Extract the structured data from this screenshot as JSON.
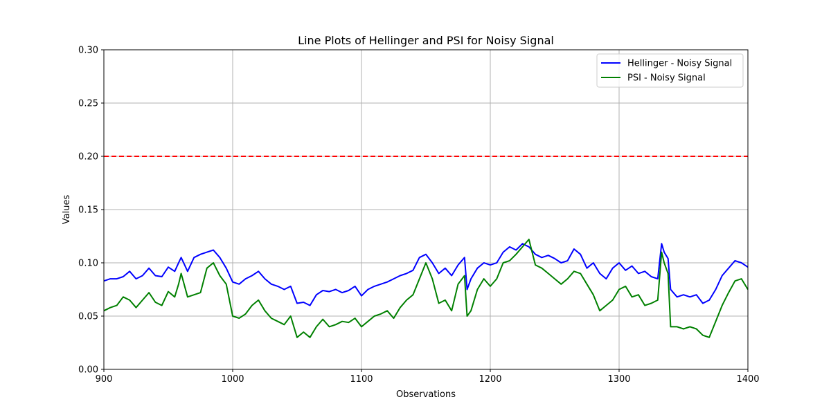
{
  "chart_data": {
    "type": "line",
    "title": "Line Plots of Hellinger and PSI for Noisy Signal",
    "xlabel": "Observations",
    "ylabel": "Values",
    "xlim": [
      900,
      1400
    ],
    "ylim": [
      0.0,
      0.3
    ],
    "x_ticks": [
      "900",
      "1000",
      "1100",
      "1200",
      "1300",
      "1400"
    ],
    "y_ticks": [
      "0.00",
      "0.05",
      "0.10",
      "0.15",
      "0.20",
      "0.25",
      "0.30"
    ],
    "grid": true,
    "legend_position": "top-right",
    "threshold": {
      "value": 0.2,
      "color": "#ff0000",
      "style": "dashed"
    },
    "series": [
      {
        "name": "Hellinger - Noisy Signal",
        "color": "#0000ff",
        "x": [
          900,
          905,
          910,
          915,
          920,
          925,
          930,
          935,
          940,
          945,
          950,
          955,
          958,
          960,
          965,
          970,
          975,
          980,
          985,
          990,
          995,
          1000,
          1005,
          1010,
          1015,
          1020,
          1025,
          1030,
          1035,
          1040,
          1045,
          1050,
          1055,
          1060,
          1065,
          1070,
          1075,
          1080,
          1085,
          1090,
          1095,
          1100,
          1105,
          1110,
          1115,
          1120,
          1125,
          1130,
          1135,
          1140,
          1145,
          1150,
          1155,
          1160,
          1165,
          1170,
          1175,
          1180,
          1182,
          1185,
          1190,
          1195,
          1200,
          1205,
          1210,
          1215,
          1220,
          1225,
          1230,
          1235,
          1240,
          1245,
          1250,
          1255,
          1260,
          1265,
          1270,
          1275,
          1280,
          1285,
          1290,
          1295,
          1300,
          1305,
          1310,
          1315,
          1320,
          1325,
          1330,
          1333,
          1335,
          1338,
          1340,
          1345,
          1350,
          1355,
          1360,
          1365,
          1370,
          1375,
          1380,
          1385,
          1390,
          1395,
          1400
        ],
        "y": [
          0.083,
          0.085,
          0.085,
          0.087,
          0.092,
          0.085,
          0.088,
          0.095,
          0.088,
          0.087,
          0.096,
          0.092,
          0.1,
          0.105,
          0.092,
          0.105,
          0.108,
          0.11,
          0.112,
          0.105,
          0.095,
          0.082,
          0.08,
          0.085,
          0.088,
          0.092,
          0.085,
          0.08,
          0.078,
          0.075,
          0.078,
          0.062,
          0.063,
          0.06,
          0.07,
          0.074,
          0.073,
          0.075,
          0.072,
          0.074,
          0.078,
          0.069,
          0.075,
          0.078,
          0.08,
          0.082,
          0.085,
          0.088,
          0.09,
          0.093,
          0.105,
          0.108,
          0.1,
          0.09,
          0.095,
          0.088,
          0.098,
          0.105,
          0.075,
          0.085,
          0.095,
          0.1,
          0.098,
          0.1,
          0.11,
          0.115,
          0.112,
          0.118,
          0.115,
          0.108,
          0.105,
          0.107,
          0.104,
          0.1,
          0.102,
          0.113,
          0.108,
          0.095,
          0.1,
          0.09,
          0.085,
          0.095,
          0.1,
          0.093,
          0.097,
          0.09,
          0.092,
          0.087,
          0.085,
          0.118,
          0.11,
          0.104,
          0.075,
          0.068,
          0.07,
          0.068,
          0.07,
          0.062,
          0.065,
          0.075,
          0.088,
          0.095,
          0.102,
          0.1,
          0.096
        ]
      },
      {
        "name": "PSI - Noisy Signal",
        "color": "#008000",
        "x": [
          900,
          905,
          910,
          915,
          920,
          925,
          930,
          935,
          940,
          945,
          950,
          955,
          958,
          960,
          965,
          970,
          975,
          980,
          985,
          990,
          995,
          1000,
          1005,
          1010,
          1015,
          1020,
          1025,
          1030,
          1035,
          1040,
          1045,
          1050,
          1055,
          1060,
          1065,
          1070,
          1075,
          1080,
          1085,
          1090,
          1095,
          1100,
          1105,
          1110,
          1115,
          1120,
          1125,
          1130,
          1135,
          1140,
          1145,
          1150,
          1155,
          1160,
          1165,
          1170,
          1175,
          1180,
          1182,
          1185,
          1190,
          1195,
          1200,
          1205,
          1210,
          1215,
          1220,
          1225,
          1230,
          1235,
          1240,
          1245,
          1250,
          1255,
          1260,
          1265,
          1270,
          1275,
          1280,
          1285,
          1290,
          1295,
          1300,
          1305,
          1310,
          1315,
          1320,
          1325,
          1330,
          1333,
          1335,
          1338,
          1340,
          1345,
          1350,
          1355,
          1360,
          1365,
          1370,
          1375,
          1380,
          1385,
          1390,
          1395,
          1400
        ],
        "y": [
          0.055,
          0.058,
          0.06,
          0.068,
          0.065,
          0.058,
          0.065,
          0.072,
          0.063,
          0.06,
          0.073,
          0.068,
          0.08,
          0.09,
          0.068,
          0.07,
          0.072,
          0.095,
          0.1,
          0.088,
          0.08,
          0.05,
          0.048,
          0.052,
          0.06,
          0.065,
          0.055,
          0.048,
          0.045,
          0.042,
          0.05,
          0.03,
          0.035,
          0.03,
          0.04,
          0.047,
          0.04,
          0.042,
          0.045,
          0.044,
          0.048,
          0.04,
          0.045,
          0.05,
          0.052,
          0.055,
          0.048,
          0.058,
          0.065,
          0.07,
          0.085,
          0.1,
          0.085,
          0.062,
          0.065,
          0.055,
          0.08,
          0.088,
          0.05,
          0.055,
          0.075,
          0.085,
          0.078,
          0.085,
          0.1,
          0.102,
          0.108,
          0.115,
          0.122,
          0.098,
          0.095,
          0.09,
          0.085,
          0.08,
          0.085,
          0.092,
          0.09,
          0.08,
          0.07,
          0.055,
          0.06,
          0.065,
          0.075,
          0.078,
          0.068,
          0.07,
          0.06,
          0.062,
          0.065,
          0.11,
          0.1,
          0.09,
          0.04,
          0.04,
          0.038,
          0.04,
          0.038,
          0.032,
          0.03,
          0.045,
          0.06,
          0.072,
          0.083,
          0.085,
          0.075
        ]
      }
    ]
  }
}
